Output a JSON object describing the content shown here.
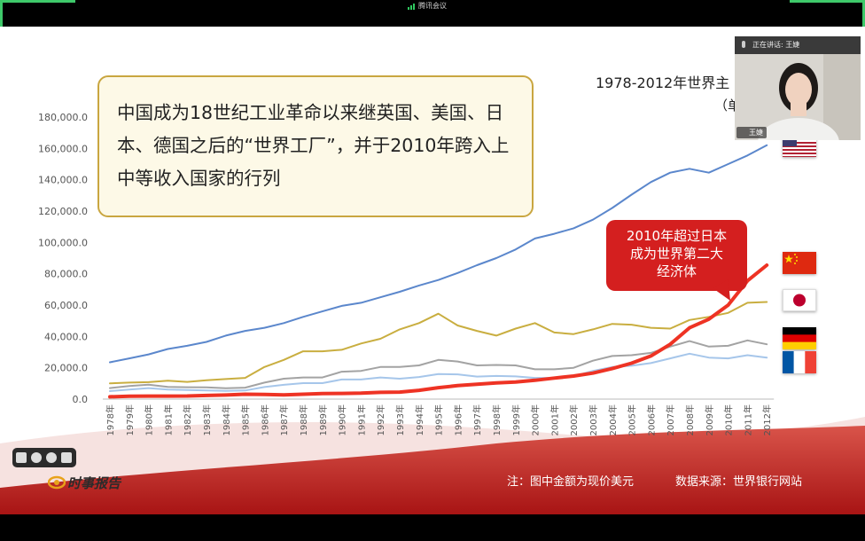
{
  "meeting": {
    "title": "腾讯会议"
  },
  "speaker": {
    "speaking_label": "正在讲话: 王婕",
    "name_tag": "王婕"
  },
  "slide": {
    "callout_text": "中国成为18世纪工业革命以来继英国、美国、日本、德国之后的“世界工厂”，并于2010年跨入上中等收入国家的行列",
    "title_visible": "1978-2012年世界主",
    "unit_visible": "（单",
    "annotation": [
      "2010年超过日本",
      "成为世界第二大",
      "经济体"
    ],
    "footer_note": "注：图中金额为现价美元",
    "footer_source": "数据来源：世界银行网站",
    "brand": "时事报告"
  },
  "colors": {
    "usa": "#5b87cc",
    "china": "#ee3324",
    "japan": "#c9ae40",
    "germany": "#a3a3a3",
    "france": "#a6c6ea"
  },
  "chart_data": {
    "type": "line",
    "ylim": [
      0,
      180000
    ],
    "yticks": [
      "0.0",
      "20,000.0",
      "40,000.0",
      "60,000.0",
      "80,000.0",
      "100,000.0",
      "120,000.0",
      "140,000.0",
      "160,000.0",
      "180,000.0"
    ],
    "categories": [
      "1978年",
      "1979年",
      "1980年",
      "1981年",
      "1982年",
      "1983年",
      "1984年",
      "1985年",
      "1986年",
      "1987年",
      "1988年",
      "1989年",
      "1990年",
      "1991年",
      "1992年",
      "1993年",
      "1994年",
      "1995年",
      "1996年",
      "1997年",
      "1998年",
      "1999年",
      "2000年",
      "2001年",
      "2002年",
      "2003年",
      "2004年",
      "2005年",
      "2006年",
      "2007年",
      "2008年",
      "2009年",
      "2010年",
      "2011年",
      "2012年"
    ],
    "series": [
      {
        "key": "usa",
        "values": [
          23500,
          26000,
          28500,
          32000,
          34000,
          36500,
          40500,
          43500,
          45500,
          48500,
          52500,
          56000,
          59500,
          61500,
          65000,
          68500,
          72500,
          76000,
          80500,
          85500,
          90000,
          95500,
          102500,
          105500,
          109000,
          114500,
          122000,
          130500,
          138500,
          144500,
          147000,
          144500,
          150000,
          155500,
          162000
        ]
      },
      {
        "key": "china",
        "values": [
          1500,
          1800,
          1900,
          1950,
          2000,
          2300,
          2600,
          3100,
          3000,
          2700,
          3100,
          3500,
          3600,
          3800,
          4300,
          4500,
          5600,
          7300,
          8600,
          9500,
          10300,
          10900,
          12000,
          13400,
          14700,
          16600,
          19500,
          22900,
          27500,
          35000,
          45500,
          51000,
          60000,
          75500,
          85500
        ]
      },
      {
        "key": "japan",
        "values": [
          10000,
          10500,
          10800,
          11800,
          11000,
          12000,
          12800,
          13500,
          20500,
          25000,
          30500,
          30500,
          31500,
          35500,
          38500,
          44500,
          48500,
          54500,
          47000,
          43500,
          40500,
          45000,
          48500,
          42500,
          41500,
          44500,
          48000,
          47500,
          45500,
          45000,
          50500,
          52500,
          55000,
          61500,
          62000
        ]
      },
      {
        "key": "germany",
        "values": [
          7000,
          8300,
          9200,
          7800,
          7600,
          7500,
          6900,
          7300,
          10500,
          13000,
          13800,
          13800,
          17500,
          18000,
          20500,
          20500,
          21500,
          25000,
          24000,
          21500,
          21800,
          21500,
          19000,
          19000,
          20000,
          24500,
          27500,
          28000,
          29500,
          33500,
          37000,
          33500,
          34000,
          37500,
          35000
        ]
      },
      {
        "key": "france",
        "values": [
          5100,
          6100,
          7000,
          6100,
          5800,
          5500,
          5200,
          5500,
          7700,
          9100,
          10200,
          10200,
          12500,
          12500,
          13800,
          13000,
          14100,
          16000,
          15800,
          14400,
          14800,
          14500,
          13500,
          13500,
          14600,
          18000,
          20500,
          21300,
          23000,
          26000,
          29000,
          26500,
          26000,
          28000,
          26500
        ]
      }
    ]
  }
}
